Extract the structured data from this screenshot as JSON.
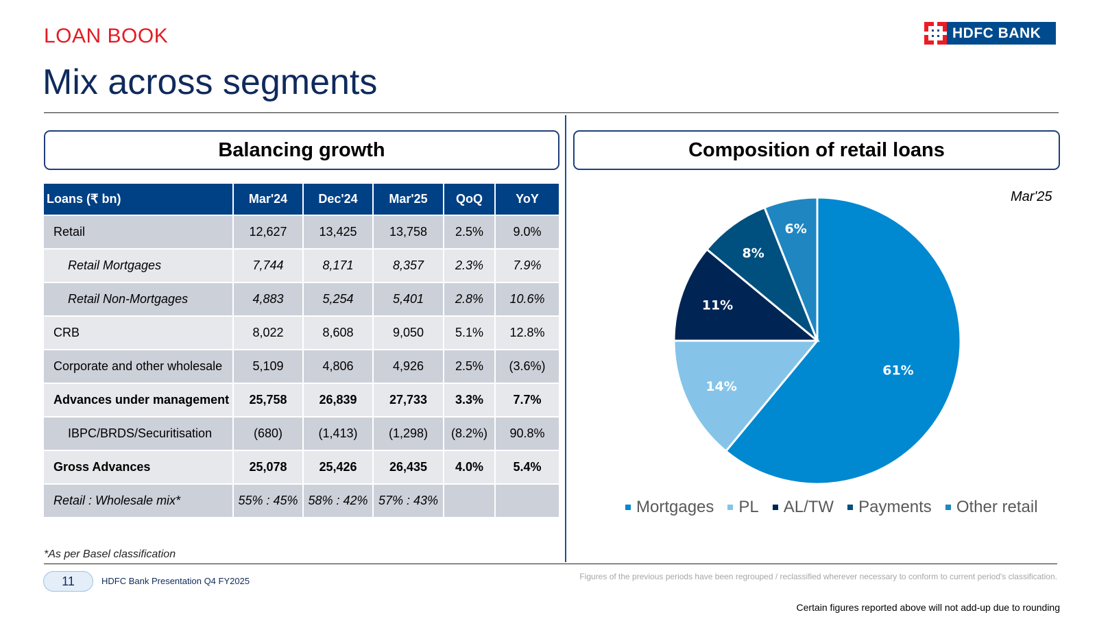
{
  "header": {
    "section": "LOAN BOOK",
    "title": "Mix across segments",
    "logo_text": "HDFC BANK"
  },
  "left_panel": {
    "heading": "Balancing growth",
    "columns": [
      "Loans (₹ bn)",
      "Mar'24",
      "Dec'24",
      "Mar'25",
      "QoQ",
      "YoY"
    ],
    "rows": [
      {
        "label": "Retail",
        "cells": [
          "12,627",
          "13,425",
          "13,758",
          "2.5%",
          "9.0%"
        ]
      },
      {
        "label": "Retail Mortgages",
        "cells": [
          "7,744",
          "8,171",
          "8,357",
          "2.3%",
          "7.9%"
        ]
      },
      {
        "label": "Retail Non-Mortgages",
        "cells": [
          "4,883",
          "5,254",
          "5,401",
          "2.8%",
          "10.6%"
        ]
      },
      {
        "label": "CRB",
        "cells": [
          "8,022",
          "8,608",
          "9,050",
          "5.1%",
          "12.8%"
        ]
      },
      {
        "label": "Corporate and other wholesale",
        "cells": [
          "5,109",
          "4,806",
          "4,926",
          "2.5%",
          "(3.6%)"
        ]
      },
      {
        "label": "Advances under management",
        "cells": [
          "25,758",
          "26,839",
          "27,733",
          "3.3%",
          "7.7%"
        ]
      },
      {
        "label": "IBPC/BRDS/Securitisation",
        "cells": [
          "(680)",
          "(1,413)",
          "(1,298)",
          "(8.2%)",
          "90.8%"
        ]
      },
      {
        "label": "Gross Advances",
        "cells": [
          "25,078",
          "25,426",
          "26,435",
          "4.0%",
          "5.4%"
        ]
      },
      {
        "label": "Retail : Wholesale mix*",
        "cells": [
          "55% : 45%",
          "58% : 42%",
          "57% : 43%",
          "",
          ""
        ]
      }
    ],
    "footnote": "*As per Basel classification"
  },
  "right_panel": {
    "heading": "Composition of retail loans",
    "period": "Mar'25"
  },
  "chart_data": {
    "type": "pie",
    "categories": [
      "Mortgages",
      "PL",
      "AL/TW",
      "Payments",
      "Other retail"
    ],
    "values": [
      61,
      14,
      11,
      8,
      6
    ],
    "labels": [
      "61%",
      "14%",
      "11%",
      "8%",
      "6%"
    ],
    "colors": [
      "#0088d1",
      "#85c4e8",
      "#002554",
      "#00507f",
      "#1f86c2"
    ],
    "legend": "bottom"
  },
  "footer": {
    "page_number": "11",
    "title": "HDFC Bank Presentation Q4 FY2025",
    "regroup_note": "Figures of the previous periods have been regrouped / reclassified wherever necessary to conform to current period's classification.",
    "rounding_note": "Certain figures reported above will not add-up due to rounding"
  }
}
